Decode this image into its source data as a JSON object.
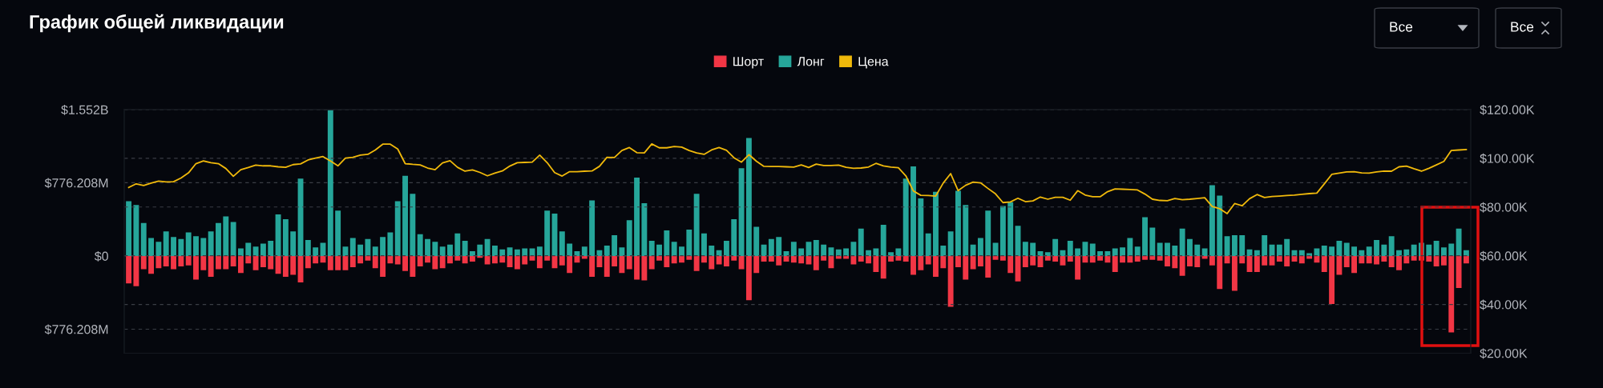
{
  "chart_data": {
    "type": "bar",
    "title": "График общей ликвидации",
    "annotations": [
      "Все",
      "Все"
    ],
    "categories": [
      null,
      null,
      null,
      null,
      null,
      null,
      null,
      null,
      null,
      null,
      null,
      null,
      null,
      null,
      null,
      null,
      null,
      null,
      null,
      null,
      null,
      null,
      null,
      null,
      null,
      null,
      null,
      null,
      null,
      null,
      null,
      null,
      null,
      null,
      null,
      null,
      null,
      null,
      null,
      null,
      null,
      null,
      null,
      null,
      null,
      null,
      null,
      null,
      null,
      null,
      null,
      null,
      null,
      null,
      null,
      null,
      null,
      null,
      null,
      null,
      null,
      null,
      null,
      null,
      null,
      null,
      null,
      null,
      null,
      null,
      null,
      null,
      null,
      null,
      null,
      null,
      null,
      null,
      null,
      null,
      null,
      null,
      null,
      null,
      null,
      null,
      null,
      null,
      null,
      null,
      null,
      null,
      null,
      null,
      null,
      null,
      null,
      null,
      null,
      null,
      null,
      null,
      null,
      null,
      null,
      null,
      null,
      null,
      null,
      null,
      null,
      null,
      null,
      null,
      null,
      null,
      null,
      null,
      null,
      null,
      null,
      null,
      null,
      null,
      null,
      null,
      null,
      null,
      null,
      null,
      null,
      null,
      null,
      null,
      null,
      null,
      null,
      null,
      null,
      null,
      null,
      null,
      null,
      null,
      null,
      null,
      null,
      null,
      null,
      null,
      null,
      null,
      null,
      null,
      null,
      null,
      null,
      null,
      null,
      null,
      null,
      null,
      null,
      null,
      null,
      null,
      null,
      null,
      null,
      null,
      null,
      null,
      null,
      null,
      null,
      null,
      null,
      null,
      null,
      null
    ],
    "stacked": true,
    "series": [
      {
        "name": "Шорт",
        "type": "bar",
        "color": "#f23645",
        "values": [
          -290000000.0,
          -320000000.0,
          -140000000.0,
          -190000000.0,
          -130000000.0,
          -110000000.0,
          -140000000.0,
          -110000000.0,
          -100000000.0,
          -250000000.0,
          -150000000.0,
          -220000000.0,
          -140000000.0,
          -140000000.0,
          -110000000.0,
          -180000000.0,
          -80000000.0,
          -150000000.0,
          -120000000.0,
          -140000000.0,
          -190000000.0,
          -220000000.0,
          -200000000.0,
          -280000000.0,
          -130000000.0,
          -80000000.0,
          -70000000.0,
          -150000000.0,
          -150000000.0,
          -150000000.0,
          -120000000.0,
          -80000000.0,
          -50000000.0,
          -130000000.0,
          -220000000.0,
          -80000000.0,
          -90000000.0,
          -160000000.0,
          -220000000.0,
          -110000000.0,
          -70000000.0,
          -140000000.0,
          -130000000.0,
          -80000000.0,
          -50000000.0,
          -80000000.0,
          -60000000.0,
          -20000000.0,
          -90000000.0,
          -80000000.0,
          -70000000.0,
          -120000000.0,
          -140000000.0,
          -90000000.0,
          -50000000.0,
          -130000000.0,
          -50000000.0,
          -130000000.0,
          -100000000.0,
          -180000000.0,
          -70000000.0,
          -30000000.0,
          -220000000.0,
          -120000000.0,
          -220000000.0,
          -110000000.0,
          -180000000.0,
          -140000000.0,
          -250000000.0,
          -260000000.0,
          -140000000.0,
          -50000000.0,
          -120000000.0,
          -80000000.0,
          -70000000.0,
          -40000000.0,
          -160000000.0,
          -70000000.0,
          -140000000.0,
          -90000000.0,
          -110000000.0,
          -50000000.0,
          -140000000.0,
          -470000000.0,
          -180000000.0,
          -60000000.0,
          -60000000.0,
          -100000000.0,
          -60000000.0,
          -70000000.0,
          -80000000.0,
          -90000000.0,
          -150000000.0,
          -50000000.0,
          -130000000.0,
          -30000000.0,
          -30000000.0,
          -90000000.0,
          -60000000.0,
          -80000000.0,
          -170000000.0,
          -240000000.0,
          -60000000.0,
          -50000000.0,
          -60000000.0,
          -200000000.0,
          -150000000.0,
          -90000000.0,
          -220000000.0,
          -130000000.0,
          -540000000.0,
          -120000000.0,
          -250000000.0,
          -140000000.0,
          -110000000.0,
          -230000000.0,
          -40000000.0,
          -50000000.0,
          -180000000.0,
          -270000000.0,
          -120000000.0,
          -100000000.0,
          -120000000.0,
          -50000000.0,
          -60000000.0,
          -100000000.0,
          -60000000.0,
          -250000000.0,
          -70000000.0,
          -70000000.0,
          -50000000.0,
          -70000000.0,
          -170000000.0,
          -70000000.0,
          -70000000.0,
          -60000000.0,
          -40000000.0,
          -40000000.0,
          -50000000.0,
          -110000000.0,
          -130000000.0,
          -210000000.0,
          -110000000.0,
          -120000000.0,
          -30000000.0,
          -100000000.0,
          -350000000.0,
          -80000000.0,
          -370000000.0,
          -80000000.0,
          -170000000.0,
          -170000000.0,
          -100000000.0,
          -100000000.0,
          -60000000.0,
          -110000000.0,
          -60000000.0,
          -80000000.0,
          -30000000.0,
          -70000000.0,
          -170000000.0,
          -510000000.0,
          -200000000.0,
          -120000000.0,
          -180000000.0,
          -80000000.0,
          -80000000.0,
          -90000000.0,
          -60000000.0,
          -120000000.0,
          -150000000.0,
          -80000000.0,
          -50000000.0,
          -50000000.0,
          -60000000.0,
          -110000000.0,
          -100000000.0,
          -810000000.0,
          -340000000.0,
          -80000000.0
        ]
      },
      {
        "name": "Лонг",
        "type": "bar",
        "color": "#26a69a",
        "values": [
          580000000.0,
          540000000.0,
          350000000.0,
          190000000.0,
          150000000.0,
          260000000.0,
          200000000.0,
          180000000.0,
          250000000.0,
          210000000.0,
          190000000.0,
          260000000.0,
          350000000.0,
          420000000.0,
          360000000.0,
          80000000.0,
          140000000.0,
          100000000.0,
          130000000.0,
          160000000.0,
          440000000.0,
          390000000.0,
          260000000.0,
          820000000.0,
          170000000.0,
          90000000.0,
          140000000.0,
          1550000000.0,
          480000000.0,
          100000000.0,
          190000000.0,
          120000000.0,
          180000000.0,
          100000000.0,
          200000000.0,
          250000000.0,
          580000000.0,
          850000000.0,
          660000000.0,
          230000000.0,
          180000000.0,
          150000000.0,
          100000000.0,
          120000000.0,
          240000000.0,
          160000000.0,
          50000000.0,
          120000000.0,
          180000000.0,
          110000000.0,
          70000000.0,
          90000000.0,
          70000000.0,
          80000000.0,
          80000000.0,
          100000000.0,
          480000000.0,
          450000000.0,
          260000000.0,
          130000000.0,
          50000000.0,
          100000000.0,
          590000000.0,
          60000000.0,
          110000000.0,
          220000000.0,
          90000000.0,
          380000000.0,
          830000000.0,
          560000000.0,
          160000000.0,
          120000000.0,
          270000000.0,
          150000000.0,
          100000000.0,
          280000000.0,
          660000000.0,
          240000000.0,
          110000000.0,
          60000000.0,
          160000000.0,
          390000000.0,
          930000000.0,
          1250000000.0,
          310000000.0,
          120000000.0,
          180000000.0,
          200000000.0,
          50000000.0,
          150000000.0,
          80000000.0,
          150000000.0,
          170000000.0,
          120000000.0,
          90000000.0,
          70000000.0,
          80000000.0,
          150000000.0,
          290000000.0,
          60000000.0,
          80000000.0,
          330000000.0,
          40000000.0,
          80000000.0,
          820000000.0,
          950000000.0,
          610000000.0,
          240000000.0,
          680000000.0,
          110000000.0,
          260000000.0,
          690000000.0,
          540000000.0,
          120000000.0,
          190000000.0,
          480000000.0,
          140000000.0,
          530000000.0,
          570000000.0,
          320000000.0,
          150000000.0,
          140000000.0,
          50000000.0,
          40000000.0,
          180000000.0,
          60000000.0,
          160000000.0,
          80000000.0,
          150000000.0,
          130000000.0,
          50000000.0,
          50000000.0,
          80000000.0,
          90000000.0,
          190000000.0,
          100000000.0,
          410000000.0,
          300000000.0,
          140000000.0,
          140000000.0,
          110000000.0,
          290000000.0,
          180000000.0,
          120000000.0,
          80000000.0,
          750000000.0,
          640000000.0,
          210000000.0,
          220000000.0,
          220000000.0,
          70000000.0,
          60000000.0,
          220000000.0,
          120000000.0,
          120000000.0,
          180000000.0,
          60000000.0,
          60000000.0,
          30000000.0,
          80000000.0,
          110000000.0,
          100000000.0,
          160000000.0,
          140000000.0,
          100000000.0,
          60000000.0,
          100000000.0,
          170000000.0,
          120000000.0,
          210000000.0,
          60000000.0,
          70000000.0,
          120000000.0,
          140000000.0,
          120000000.0,
          160000000.0,
          90000000.0,
          130000000.0,
          290000000.0,
          60000000.0
        ]
      },
      {
        "name": "Цена",
        "type": "line",
        "axis": "y2",
        "color": "#f0b90b",
        "values": [
          88.0,
          89.5,
          88.8,
          89.8,
          90.6,
          90.3,
          90.4,
          91.9,
          94.0,
          97.8,
          98.9,
          98.2,
          97.8,
          95.8,
          92.6,
          95.3,
          96.2,
          97.2,
          96.9,
          96.9,
          96.5,
          96.3,
          97.4,
          97.7,
          99.3,
          100.1,
          100.7,
          98.9,
          96.9,
          100.1,
          100.4,
          101.3,
          101.6,
          103.4,
          105.8,
          105.8,
          103.8,
          97.8,
          97.5,
          97.3,
          96.0,
          95.3,
          98.1,
          99.0,
          96.3,
          94.7,
          95.2,
          94.2,
          92.8,
          93.9,
          94.8,
          96.8,
          98.2,
          98.3,
          98.4,
          101.3,
          98.2,
          94.1,
          92.7,
          94.5,
          94.5,
          94.7,
          94.8,
          96.7,
          100.4,
          100.3,
          103.2,
          104.4,
          102.3,
          102.2,
          105.9,
          104.3,
          104.3,
          104.8,
          104.6,
          103.2,
          102.2,
          101.6,
          103.4,
          104.4,
          103.3,
          100.2,
          98.4,
          101.5,
          98.8,
          96.7,
          96.6,
          96.6,
          96.5,
          96.4,
          97.3,
          96.2,
          97.6,
          97.0,
          97.0,
          97.2,
          96.3,
          95.9,
          96.0,
          96.4,
          97.9,
          96.9,
          96.4,
          96.1,
          92.8,
          86.6,
          84.8,
          84.7,
          84.5,
          89.8,
          93.7,
          86.7,
          88.9,
          90.2,
          89.9,
          87.6,
          85.4,
          81.8,
          82.1,
          83.6,
          82.2,
          82.5,
          84.1,
          83.2,
          84.0,
          84.0,
          82.8,
          86.7,
          84.9,
          84.2,
          84.2,
          86.3,
          87.4,
          87.3,
          87.2,
          87.0,
          85.3,
          83.2,
          82.7,
          82.6,
          83.5,
          83.0,
          83.2,
          83.5,
          83.8,
          80.2,
          79.3,
          77.3,
          81.4,
          80.5,
          83.4,
          85.1,
          83.9,
          84.3,
          84.5,
          84.7,
          84.9,
          85.2,
          85.5,
          85.7,
          89.5,
          93.4,
          93.9,
          94.4,
          94.5,
          94.0,
          93.9,
          94.4,
          94.7,
          94.7,
          96.5,
          96.8,
          95.7,
          94.7,
          95.9,
          97.3,
          98.7,
          103.2,
          103.4,
          103.6
        ]
      }
    ],
    "ylim": [
      -1031000000,
      1552416000
    ],
    "yticks": [
      {
        "value": 1552416000,
        "label": "$1.552B"
      },
      {
        "value": 776208000,
        "label": "$776.208M"
      },
      {
        "value": 0,
        "label": "$0"
      },
      {
        "value": -776208000,
        "label": "$776.208M"
      }
    ],
    "y2lim": [
      20,
      120
    ],
    "y2ticks": [
      {
        "value": 20,
        "label": "$20.00K"
      },
      {
        "value": 40,
        "label": "$40.00K"
      },
      {
        "value": 60,
        "label": "$60.00K"
      },
      {
        "value": 80,
        "label": "$80.00K"
      },
      {
        "value": 100,
        "label": "$100.00K"
      },
      {
        "value": 120,
        "label": "$120.00K"
      }
    ],
    "grid": "y",
    "legend": "top",
    "line_style": "solid",
    "marker": "none"
  }
}
